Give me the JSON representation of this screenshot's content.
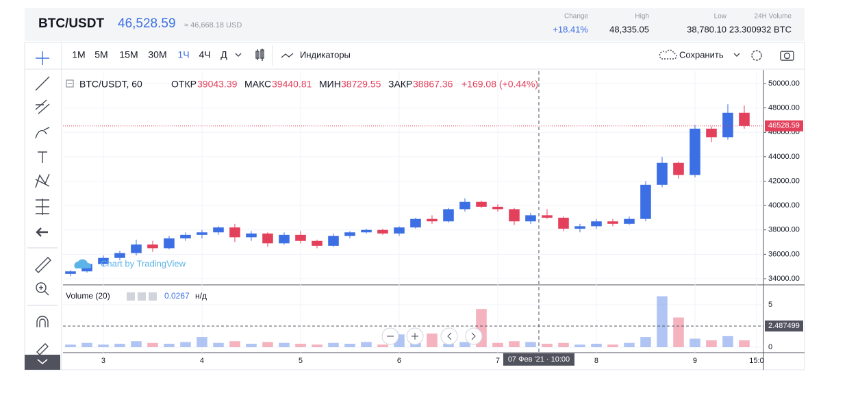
{
  "header": {
    "symbol": "BTC/USDT",
    "price": "46,528.59",
    "price_usd": "≈ 46,668.18 USD",
    "stats": [
      {
        "label": "Change",
        "value": "+18.41%"
      },
      {
        "label": "High",
        "value": "48,335.05"
      },
      {
        "label": "Low",
        "value": "38,780.10"
      },
      {
        "label": "24H Volume",
        "value": "23.300932 BTC"
      }
    ]
  },
  "toolbar": {
    "intervals": [
      "1М",
      "5М",
      "15М",
      "30М",
      "1Ч",
      "4Ч",
      "Д"
    ],
    "active": 4,
    "indicators": "Индикаторы",
    "save": "Сохранить"
  },
  "legend": {
    "title": "BTC/USDT, 60",
    "items": [
      {
        "label": "ОТКР",
        "value": "39043.39"
      },
      {
        "label": "МАКС",
        "value": "39440.81"
      },
      {
        "label": "МИН",
        "value": "38729.55"
      },
      {
        "label": "ЗАКР",
        "value": "38867.36"
      }
    ],
    "change": "+169.08 (+0.44%)",
    "volume_title": "Volume (20)",
    "volume_value": "0.0267",
    "volume_na": "н/д"
  },
  "watermark": "Chart by TradingView",
  "chart_data": {
    "type": "candlestick",
    "up_color": "#3b6fe3",
    "down_color": "#e3405c",
    "grid": true,
    "xlim": [
      -9.83,
      160.67
    ],
    "xticks": [
      {
        "value": 0,
        "label": "3"
      },
      {
        "value": 24,
        "label": "4"
      },
      {
        "value": 48,
        "label": "5"
      },
      {
        "value": 72,
        "label": "6"
      },
      {
        "value": 96,
        "label": "7"
      },
      {
        "value": 120,
        "label": "8"
      },
      {
        "value": 144,
        "label": "9"
      },
      {
        "value": 159,
        "label": "15:0"
      }
    ],
    "ylim": [
      33550,
      51010
    ],
    "yticks": [
      {
        "value": 34000,
        "label": "34000.00"
      },
      {
        "value": 36000,
        "label": "36000.00"
      },
      {
        "value": 38000,
        "label": "38000.00"
      },
      {
        "value": 40000,
        "label": "40000.00"
      },
      {
        "value": 42000,
        "label": "42000.00"
      },
      {
        "value": 44000,
        "label": "44000.00"
      },
      {
        "value": 46000,
        "label": "46000.00"
      },
      {
        "value": 48000,
        "label": "48000.00"
      },
      {
        "value": 50000,
        "label": "50000.00"
      }
    ],
    "x": [
      -8,
      -4,
      0,
      4,
      8,
      12,
      16,
      20,
      24,
      28,
      32,
      36,
      40,
      44,
      48,
      52,
      56,
      60,
      64,
      68,
      72,
      76,
      80,
      84,
      88,
      92,
      96,
      100,
      104,
      108,
      112,
      116,
      120,
      124,
      128,
      132,
      136,
      140,
      144,
      148,
      152,
      156
    ],
    "open": [
      34400,
      34600,
      35200,
      35700,
      36100,
      36800,
      36500,
      37300,
      37600,
      37800,
      38200,
      37400,
      37700,
      36900,
      37600,
      37100,
      36700,
      37500,
      37800,
      38000,
      37700,
      38200,
      38900,
      38700,
      39700,
      40300,
      39900,
      39700,
      38700,
      39200,
      39000,
      38100,
      38300,
      38700,
      38500,
      38900,
      41700,
      43500,
      42500,
      46300,
      45600,
      47600
    ],
    "high": [
      34700,
      35300,
      35900,
      36300,
      37200,
      37100,
      37500,
      37800,
      38000,
      38300,
      38500,
      37900,
      37800,
      37800,
      37900,
      37200,
      37700,
      37900,
      38100,
      38100,
      38300,
      39000,
      39200,
      39800,
      40600,
      40400,
      40100,
      39800,
      39400,
      39700,
      39100,
      38500,
      38900,
      38900,
      39100,
      42000,
      44000,
      43600,
      46600,
      46500,
      48300,
      48200
    ],
    "low": [
      34200,
      34500,
      35000,
      35500,
      35900,
      36200,
      36400,
      37100,
      37300,
      37600,
      37000,
      37100,
      36600,
      36800,
      36900,
      36500,
      36600,
      37300,
      37700,
      37600,
      37500,
      38100,
      38500,
      38600,
      39500,
      39800,
      39500,
      38400,
      38500,
      38900,
      37900,
      37800,
      38100,
      38300,
      38400,
      38700,
      41500,
      42200,
      42300,
      45200,
      45400,
      46300
    ],
    "close": [
      34600,
      35200,
      35700,
      36100,
      36800,
      36500,
      37300,
      37600,
      37800,
      38200,
      37400,
      37700,
      36900,
      37600,
      37100,
      36700,
      37500,
      37800,
      38000,
      37700,
      38200,
      38900,
      38700,
      39700,
      40300,
      39900,
      39700,
      38700,
      39200,
      39000,
      38100,
      38300,
      38700,
      38500,
      38900,
      41700,
      43500,
      42500,
      46300,
      45600,
      47600,
      46528.59
    ],
    "last_price": 46528.59,
    "volume": {
      "ylim": [
        -0.65,
        7.18
      ],
      "yticks": [
        0,
        5
      ],
      "last": 2.487499,
      "values": [
        0.3,
        0.5,
        0.3,
        0.4,
        0.7,
        0.5,
        0.4,
        0.6,
        1.2,
        0.5,
        0.7,
        0.4,
        0.6,
        0.5,
        0.4,
        0.3,
        0.5,
        0.4,
        0.6,
        0.3,
        1.5,
        0.5,
        1.6,
        0.4,
        0.6,
        4.5,
        0.5,
        0.7,
        0.6,
        0.4,
        0.5,
        0.3,
        0.4,
        0.3,
        0.5,
        1.2,
        6,
        3.5,
        1,
        0.8,
        1.3,
        0.8
      ]
    },
    "crosshair": {
      "x": 106,
      "label": "07 Фев '21 · 10:00"
    }
  }
}
